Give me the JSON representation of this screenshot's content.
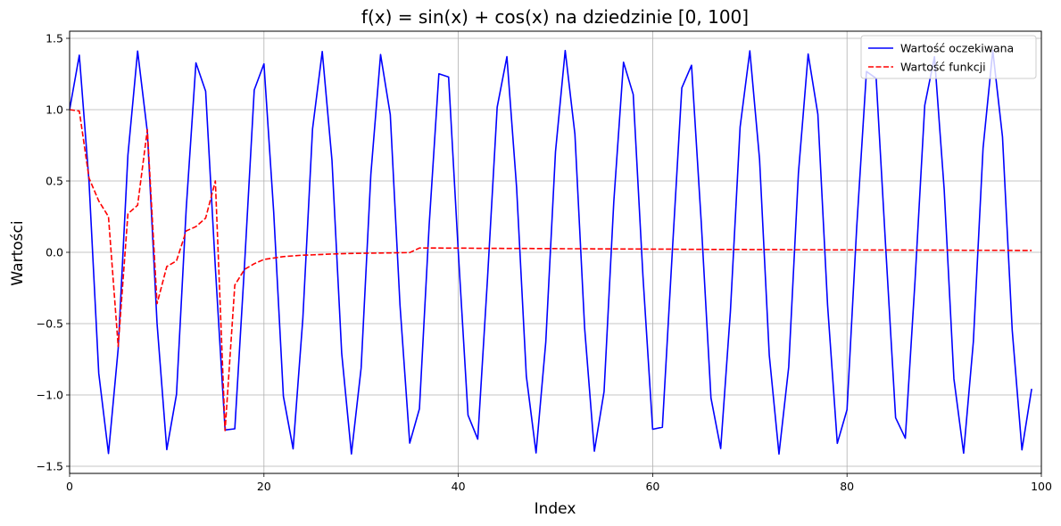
{
  "chart_data": {
    "type": "line",
    "title": "f(x) = sin(x) + cos(x) na dziedzinie [0, 100]",
    "xlabel": "Index",
    "ylabel": "Wartości",
    "xlim": [
      0,
      100
    ],
    "ylim": [
      -1.55,
      1.55
    ],
    "x_ticks": [
      0,
      20,
      40,
      60,
      80,
      100
    ],
    "x_tick_labels": [
      "0",
      "20",
      "40",
      "60",
      "80",
      "100"
    ],
    "y_ticks": [
      -1.5,
      -1.0,
      -0.5,
      0.0,
      0.5,
      1.0,
      1.5
    ],
    "y_tick_labels": [
      "−1.5",
      "−1.0",
      "−0.5",
      "0.0",
      "0.5",
      "1.0",
      "1.5"
    ],
    "grid": true,
    "legend_position": "top-right",
    "x": [
      0,
      1,
      2,
      3,
      4,
      5,
      6,
      7,
      8,
      9,
      10,
      11,
      12,
      13,
      14,
      15,
      16,
      17,
      18,
      19,
      20,
      21,
      22,
      23,
      24,
      25,
      26,
      27,
      28,
      29,
      30,
      31,
      32,
      33,
      34,
      35,
      36,
      37,
      38,
      39,
      40,
      41,
      42,
      43,
      44,
      45,
      46,
      47,
      48,
      49,
      50,
      51,
      52,
      53,
      54,
      55,
      56,
      57,
      58,
      59,
      60,
      61,
      62,
      63,
      64,
      65,
      66,
      67,
      68,
      69,
      70,
      71,
      72,
      73,
      74,
      75,
      76,
      77,
      78,
      79,
      80,
      81,
      82,
      83,
      84,
      85,
      86,
      87,
      88,
      89,
      90,
      91,
      92,
      93,
      94,
      95,
      96,
      97,
      98,
      99
    ],
    "series": [
      {
        "name": "Wartość oczekiwana",
        "color": "#0000ff",
        "style": "solid",
        "values": [
          1.0,
          1.3818,
          0.4932,
          -0.8489,
          -1.4104,
          -0.6753,
          0.6808,
          1.4109,
          0.8441,
          -0.499,
          -1.3831,
          -0.9956,
          0.3064,
          1.3278,
          1.1292,
          -0.1091,
          -1.2456,
          -1.2375,
          -0.0907,
          1.1384,
          1.321,
          0.2837,
          -1.0097,
          -1.3776,
          -0.4664,
          0.8647,
          1.4077,
          0.6445,
          -0.7078,
          -1.4138,
          -0.8114,
          0.5459,
          1.3866,
          0.9645,
          -0.3703,
          -1.338,
          -1.0968,
          0.1901,
          1.2514,
          1.2292,
          0.0,
          -1.142,
          -1.31,
          -0.1887,
          1.0177,
          1.3713,
          0.4524,
          -0.868,
          -1.4063,
          -0.6304,
          0.7044,
          1.4143,
          0.8278,
          -0.5316,
          -1.3945,
          -0.976,
          0.3539,
          1.3323,
          1.1066,
          -0.1664,
          -1.2405,
          -1.226,
          -0.0219,
          1.153,
          1.311,
          0.2103,
          -1.0206,
          -1.3758,
          -0.415,
          0.879,
          1.412,
          0.6516,
          -0.7214,
          -1.4141,
          -0.8044,
          0.5561,
          1.3905,
          0.9679,
          -0.3703,
          -1.3394,
          -1.104,
          0.1785,
          1.2676,
          1.219,
          0.0122,
          -1.1599,
          -1.3037,
          -0.1989,
          1.0305,
          1.3706,
          0.4396,
          -0.8865,
          -1.4082,
          -0.628,
          0.7302,
          1.4141,
          0.8091,
          -0.5457,
          -1.3849,
          -0.9571
        ]
      },
      {
        "name": "Wartość funkcji",
        "color": "#ff0000",
        "style": "dashed",
        "values": [
          1.0,
          0.99,
          0.52,
          0.36,
          0.25,
          -0.66,
          0.27,
          0.33,
          0.86,
          -0.36,
          -0.1,
          -0.06,
          0.15,
          0.18,
          0.24,
          0.5,
          -1.25,
          -0.23,
          -0.12,
          -0.08,
          -0.05,
          -0.04,
          -0.03,
          -0.025,
          -0.02,
          -0.018,
          -0.015,
          -0.012,
          -0.01,
          -0.008,
          -0.007,
          -0.006,
          -0.005,
          -0.004,
          -0.003,
          -0.002,
          0.03,
          0.03,
          0.03,
          0.029,
          0.029,
          0.029,
          0.028,
          0.028,
          0.028,
          0.027,
          0.027,
          0.027,
          0.026,
          0.026,
          0.026,
          0.025,
          0.025,
          0.025,
          0.024,
          0.024,
          0.024,
          0.023,
          0.023,
          0.023,
          0.022,
          0.022,
          0.022,
          0.021,
          0.021,
          0.021,
          0.02,
          0.02,
          0.02,
          0.02,
          0.019,
          0.019,
          0.019,
          0.019,
          0.018,
          0.018,
          0.018,
          0.018,
          0.017,
          0.017,
          0.017,
          0.017,
          0.016,
          0.016,
          0.016,
          0.016,
          0.016,
          0.015,
          0.015,
          0.015,
          0.015,
          0.015,
          0.014,
          0.014,
          0.014,
          0.014,
          0.014,
          0.013,
          0.013,
          0.013
        ]
      }
    ]
  }
}
